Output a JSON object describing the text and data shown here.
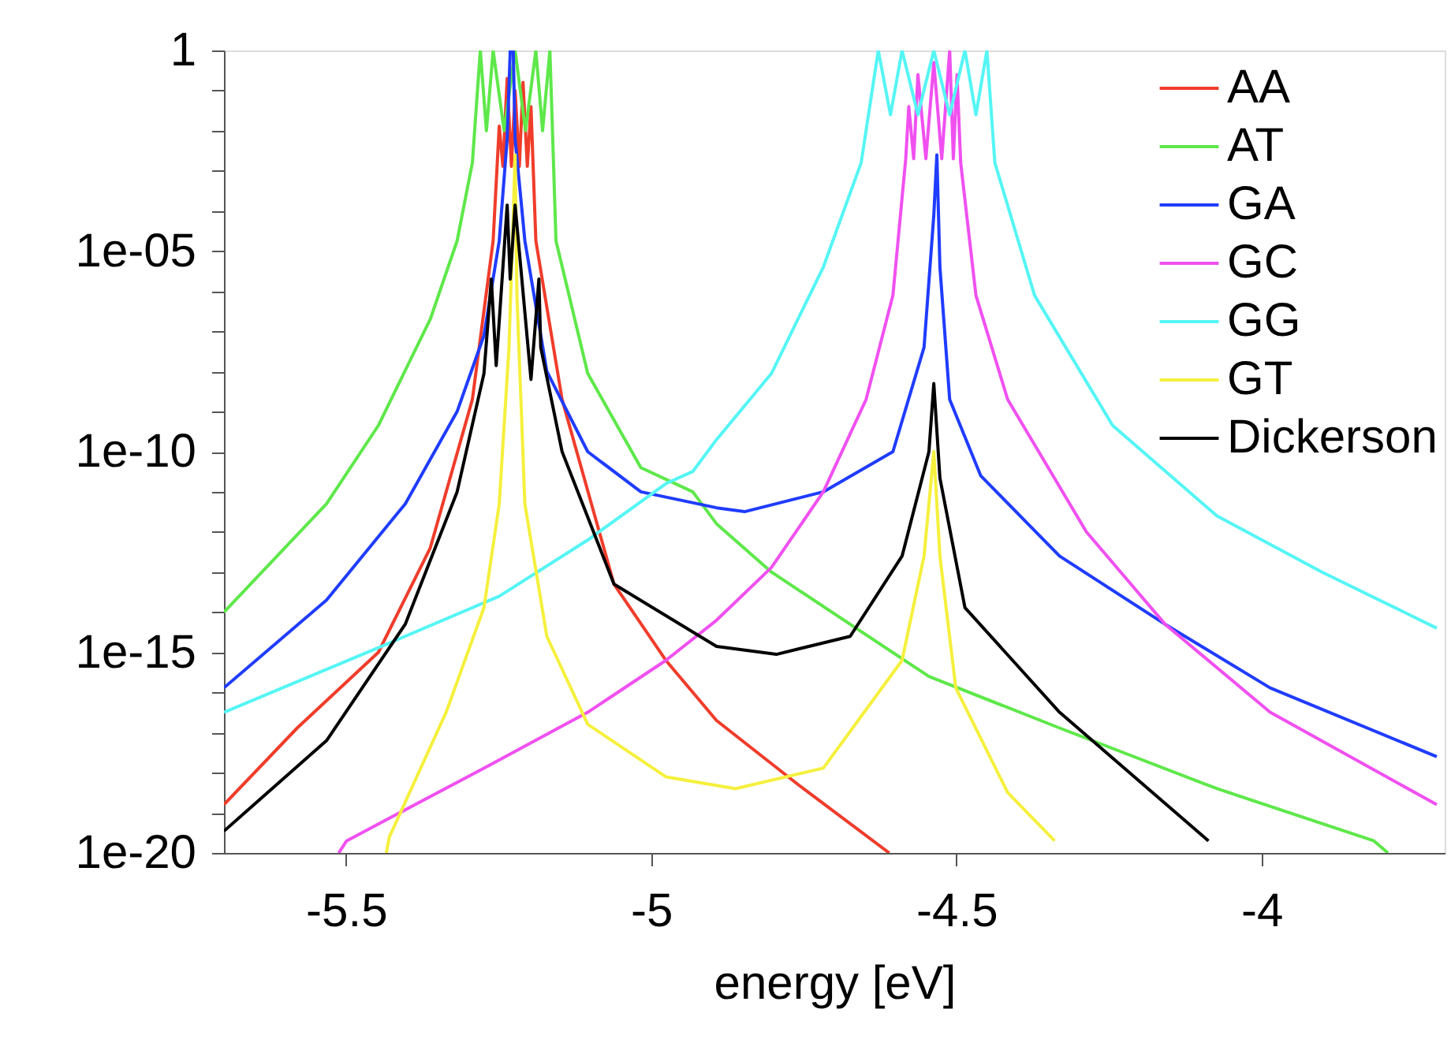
{
  "chart_data": {
    "type": "line",
    "xlabel": "energy [eV]",
    "log": "y",
    "grid": false,
    "legend": "top right",
    "marker": "none",
    "line_style": "solid",
    "xlim": [
      -5.7,
      -3.7
    ],
    "xticks": [
      -5.5,
      -5,
      -4.5,
      -4
    ],
    "ylim": [
      1e-20,
      1
    ],
    "yticks": [
      1,
      {
        "value": 0.1,
        "label": null
      },
      {
        "value": 0.01,
        "label": null
      },
      {
        "value": 0.001,
        "label": null
      },
      {
        "value": 0.0001,
        "label": null
      },
      {
        "value": 1e-05,
        "label": "1e-05"
      },
      {
        "value": 1e-06,
        "label": null
      },
      {
        "value": 1e-07,
        "label": null
      },
      {
        "value": 1e-08,
        "label": null
      },
      {
        "value": 1e-09,
        "label": null
      },
      {
        "value": 1e-10,
        "label": "1e-10"
      },
      {
        "value": 1e-11,
        "label": null
      },
      {
        "value": 1e-12,
        "label": null
      },
      {
        "value": 1e-13,
        "label": null
      },
      {
        "value": 1e-14,
        "label": null
      },
      {
        "value": 1e-15,
        "label": "1e-15"
      },
      {
        "value": 1e-16,
        "label": null
      },
      {
        "value": 1e-17,
        "label": null
      },
      {
        "value": 1e-18,
        "label": null
      },
      {
        "value": 1e-19,
        "label": null
      },
      {
        "value": 1e-20,
        "label": "1e-20"
      }
    ],
    "series": [
      {
        "name": "AA",
        "color": "#f03c2a",
        "x": [
          -5.7,
          -5.58,
          -5.447,
          -5.362,
          -5.293,
          -5.259,
          -5.249,
          -5.243,
          -5.236,
          -5.229,
          -5.223,
          -5.216,
          -5.21,
          -5.203,
          -5.197,
          -5.189,
          -5.146,
          -5.061,
          -4.976,
          -4.893,
          -4.759,
          -4.61
        ],
        "values": [
          1.6e-19,
          1.3e-17,
          1e-15,
          4e-13,
          2e-09,
          1.8e-05,
          0.013,
          0.0013,
          0.2,
          0.0013,
          0.1,
          0.0013,
          0.16,
          0.0013,
          0.04,
          1.8e-05,
          2e-09,
          5e-14,
          6.3e-16,
          2e-17,
          5e-19,
          1e-20
        ]
      },
      {
        "name": "AT",
        "color": "#5ee84a",
        "x": [
          -5.7,
          -5.532,
          -5.447,
          -5.362,
          -5.318,
          -5.293,
          -5.28,
          -5.27,
          -5.259,
          -5.241,
          -5.223,
          -5.206,
          -5.189,
          -5.178,
          -5.166,
          -5.156,
          -5.104,
          -5.017,
          -4.932,
          -4.893,
          -4.803,
          -4.545,
          -4.331,
          -4.073,
          -3.816,
          -3.793
        ],
        "values": [
          1e-14,
          5e-12,
          4.5e-10,
          2e-07,
          1.8e-05,
          0.0016,
          1,
          0.01,
          1,
          0.01,
          1,
          0.01,
          1,
          0.01,
          1,
          1.8e-05,
          8.9e-09,
          4e-11,
          1e-11,
          1.6e-12,
          1e-13,
          2.5e-16,
          1.3e-17,
          4e-19,
          2e-20,
          1e-20
        ]
      },
      {
        "name": "GA",
        "color": "#1f3cff",
        "x": [
          -5.7,
          -5.532,
          -5.403,
          -5.318,
          -5.274,
          -5.249,
          -5.236,
          -5.231,
          -5.226,
          -5.223,
          -5.207,
          -5.171,
          -5.104,
          -5.017,
          -4.893,
          -4.847,
          -4.718,
          -4.604,
          -4.553,
          -4.537,
          -4.532,
          -4.527,
          -4.511,
          -4.46,
          -4.331,
          -4.158,
          -3.986,
          -3.713
        ],
        "values": [
          1.3e-16,
          2e-14,
          5e-12,
          1e-09,
          7.9e-08,
          1.8e-05,
          0.0063,
          1,
          1,
          0.0063,
          1.8e-05,
          1e-08,
          1e-10,
          1e-11,
          4e-12,
          3.2e-12,
          1e-11,
          1e-10,
          4e-08,
          7.9e-05,
          0.0025,
          4e-06,
          2e-09,
          2.5e-11,
          2.5e-13,
          5e-15,
          1.3e-16,
          2.5e-18
        ]
      },
      {
        "name": "GC",
        "color": "#f050f0",
        "x": [
          -5.512,
          -5.499,
          -5.274,
          -5.104,
          -4.976,
          -4.893,
          -4.803,
          -4.718,
          -4.648,
          -4.604,
          -4.583,
          -4.578,
          -4.57,
          -4.563,
          -4.55,
          -4.537,
          -4.524,
          -4.511,
          -4.505,
          -4.499,
          -4.493,
          -4.468,
          -4.416,
          -4.287,
          -4.158,
          -3.986,
          -3.713
        ],
        "values": [
          1e-20,
          2e-20,
          1.3e-18,
          3.2e-17,
          6.3e-16,
          6.3e-15,
          1.3e-13,
          1e-11,
          2e-09,
          7.9e-07,
          0.002,
          0.04,
          0.002,
          0.25,
          0.002,
          0.5,
          0.002,
          1,
          0.002,
          0.25,
          0.0016,
          7.9e-07,
          2e-09,
          1e-12,
          5e-15,
          3.2e-17,
          1.6e-19
        ]
      },
      {
        "name": "GG",
        "color": "#55f5f5",
        "x": [
          -5.7,
          -5.447,
          -5.249,
          -5.104,
          -4.976,
          -4.932,
          -4.893,
          -4.803,
          -4.718,
          -4.656,
          -4.628,
          -4.608,
          -4.589,
          -4.563,
          -4.537,
          -4.511,
          -4.486,
          -4.468,
          -4.45,
          -4.437,
          -4.372,
          -4.244,
          -4.073,
          -3.901,
          -3.713
        ],
        "values": [
          3.2e-17,
          1.3e-15,
          2.5e-14,
          6.3e-13,
          1.6e-11,
          3.2e-11,
          2e-10,
          8.9e-09,
          4e-06,
          0.0016,
          1,
          0.025,
          1,
          0.025,
          1,
          0.025,
          1,
          0.025,
          1,
          0.0016,
          7.9e-07,
          4.5e-10,
          2.5e-12,
          1e-13,
          4e-15
        ]
      },
      {
        "name": "GT",
        "color": "#f5f03c",
        "x": [
          -5.434,
          -5.429,
          -5.336,
          -5.274,
          -5.249,
          -5.233,
          -5.226,
          -5.223,
          -5.22,
          -5.207,
          -5.171,
          -5.104,
          -4.976,
          -4.862,
          -4.718,
          -4.589,
          -4.553,
          -4.537,
          -4.527,
          -4.501,
          -4.416,
          -4.339
        ],
        "values": [
          1e-20,
          2.5e-20,
          3.2e-17,
          1.3e-14,
          5e-12,
          4e-08,
          7.9e-05,
          0.0025,
          7.9e-07,
          5e-12,
          2.5e-15,
          1.6e-17,
          7.9e-19,
          4e-19,
          1.3e-18,
          6.3e-16,
          2.5e-13,
          1e-10,
          2.5e-13,
          1.3e-16,
          3.2e-19,
          2e-20
        ]
      },
      {
        "name": "Dickerson",
        "color": "#000000",
        "x": [
          -5.7,
          -5.532,
          -5.403,
          -5.318,
          -5.274,
          -5.262,
          -5.254,
          -5.236,
          -5.231,
          -5.223,
          -5.197,
          -5.184,
          -5.181,
          -5.146,
          -5.061,
          -4.893,
          -4.795,
          -4.674,
          -4.589,
          -4.545,
          -4.537,
          -4.527,
          -4.486,
          -4.331,
          -4.087
        ],
        "values": [
          3.5e-20,
          6.3e-18,
          5e-15,
          1e-11,
          8.9e-09,
          2e-06,
          1.4e-08,
          0.00014,
          2e-06,
          0.00014,
          6.3e-09,
          2e-06,
          4e-08,
          1e-10,
          5e-14,
          1.4e-15,
          8.9e-16,
          2.5e-15,
          2.5e-13,
          1e-10,
          5e-09,
          2.2e-11,
          1.3e-14,
          3.2e-17,
          2e-20
        ]
      }
    ]
  }
}
